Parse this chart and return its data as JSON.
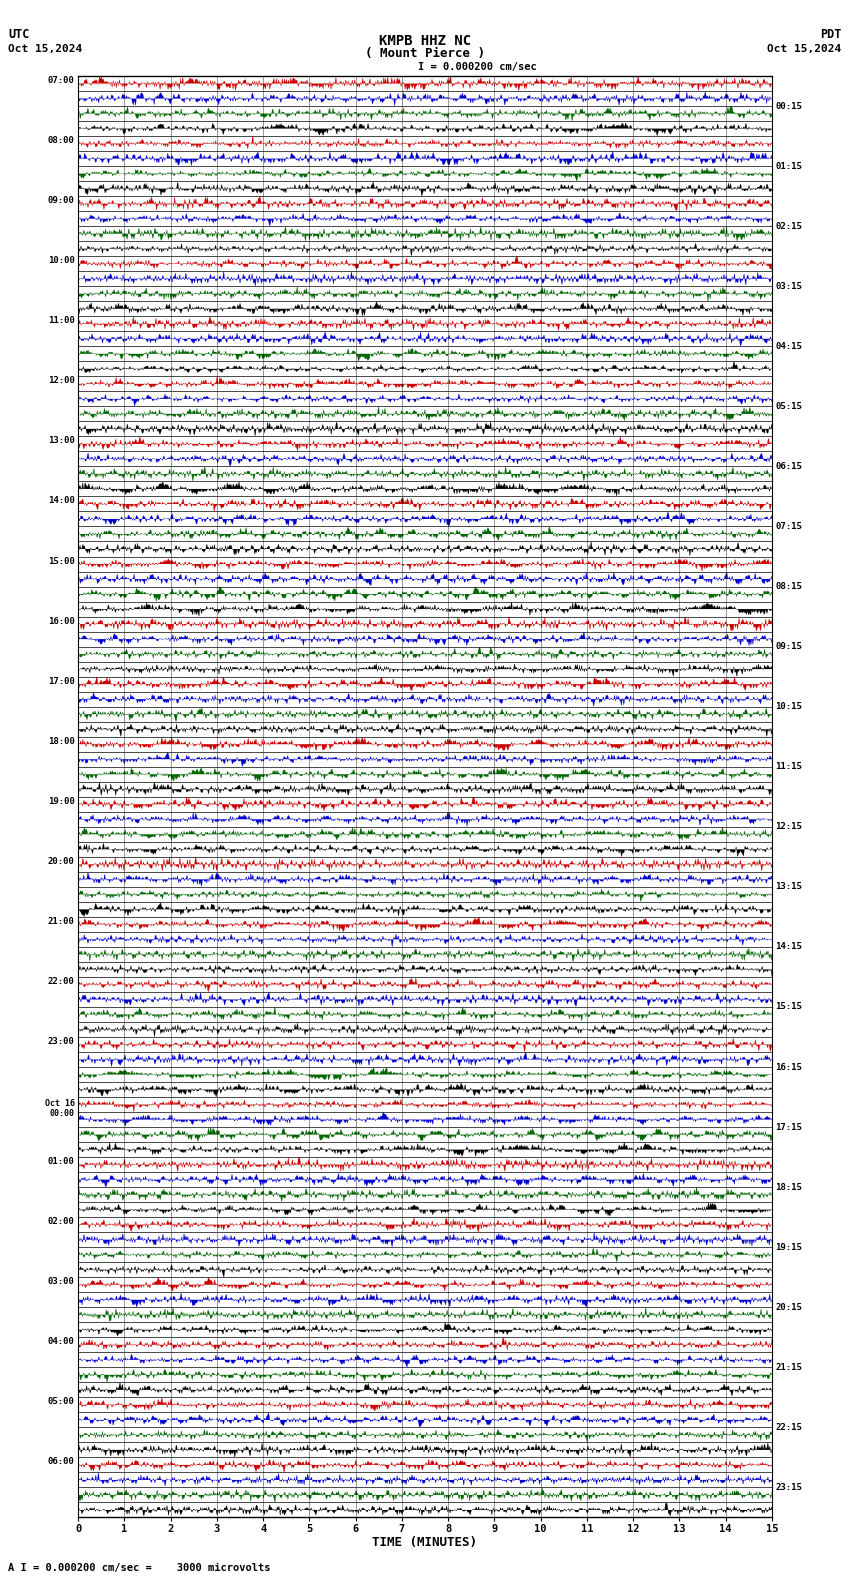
{
  "title_line1": "KMPB HHZ NC",
  "title_line2": "( Mount Pierce )",
  "scale_text": "I = 0.000200 cm/sec",
  "footer_text": "A I = 0.000200 cm/sec =    3000 microvolts",
  "utc_label": "UTC",
  "utc_date": "Oct 15,2024",
  "pdt_label": "PDT",
  "pdt_date": "Oct 15,2024",
  "xlabel": "TIME (MINUTES)",
  "left_times": [
    "07:00",
    "08:00",
    "09:00",
    "10:00",
    "11:00",
    "12:00",
    "13:00",
    "14:00",
    "15:00",
    "16:00",
    "17:00",
    "18:00",
    "19:00",
    "20:00",
    "21:00",
    "22:00",
    "23:00",
    "Oct 16\n00:00",
    "01:00",
    "02:00",
    "03:00",
    "04:00",
    "05:00",
    "06:00"
  ],
  "right_times": [
    "00:15",
    "01:15",
    "02:15",
    "03:15",
    "04:15",
    "05:15",
    "06:15",
    "07:15",
    "08:15",
    "09:15",
    "10:15",
    "11:15",
    "12:15",
    "13:15",
    "14:15",
    "15:15",
    "16:15",
    "17:15",
    "18:15",
    "19:15",
    "20:15",
    "21:15",
    "22:15",
    "23:15"
  ],
  "n_hours": 24,
  "n_subrows": 4,
  "bg_color": "#ffffff",
  "sub_colors": [
    "#cc0000",
    "#0000cc",
    "#006600",
    "#000000"
  ],
  "figsize": [
    8.5,
    15.84
  ],
  "dpi": 100
}
